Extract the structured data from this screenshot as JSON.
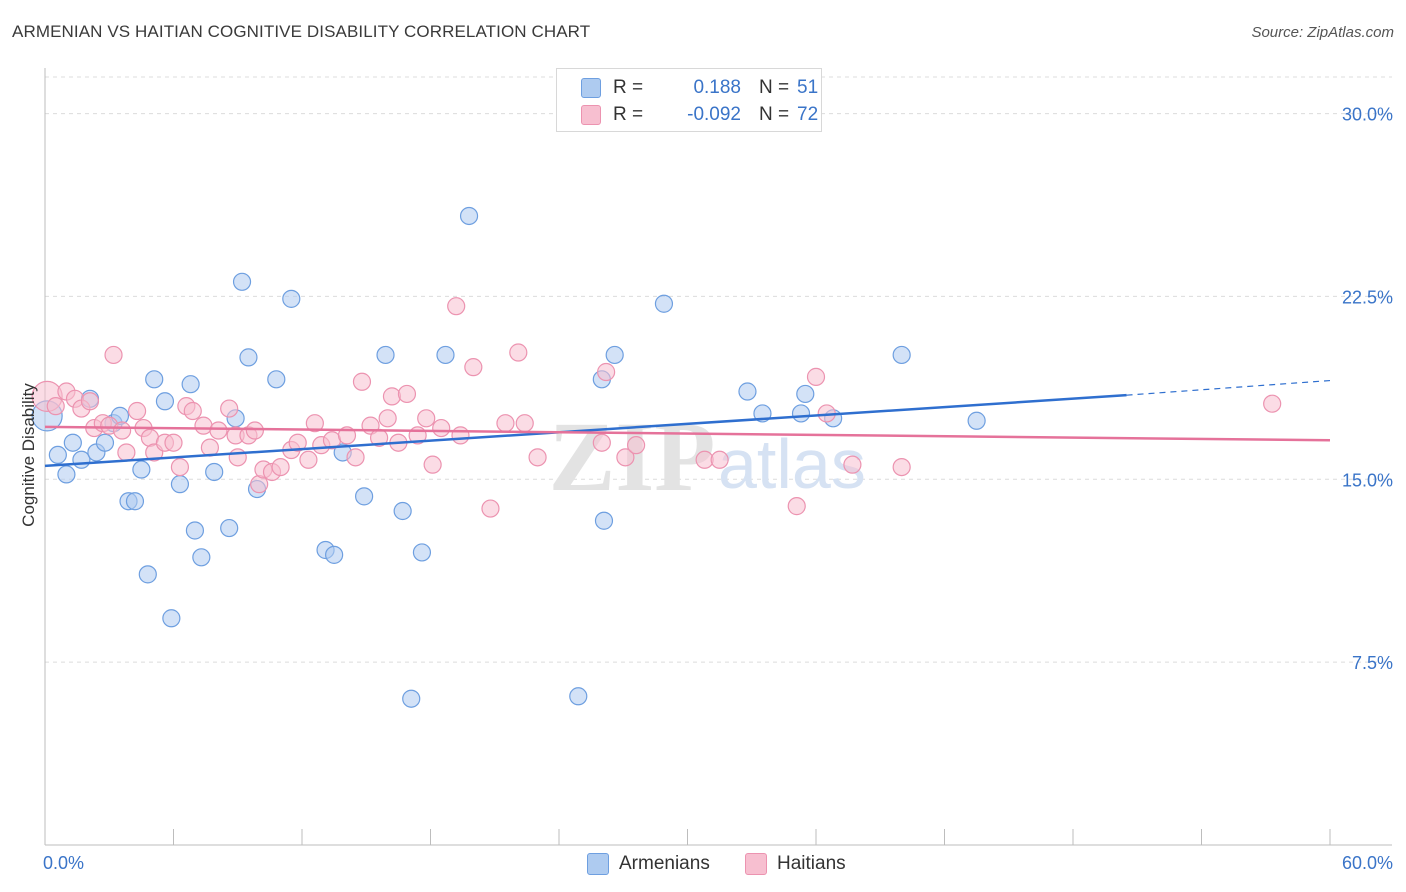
{
  "title": "ARMENIAN VS HAITIAN COGNITIVE DISABILITY CORRELATION CHART",
  "source": "Source: ZipAtlas.com",
  "watermark": {
    "zip": "ZIP",
    "atlas": "atlas"
  },
  "colors": {
    "armenians_fill": "#aecbf0",
    "armenians_stroke": "#6e9fe0",
    "armenians_line": "#2f6fcf",
    "haitians_fill": "#f7bfd0",
    "haitians_stroke": "#ec93b0",
    "haitians_line": "#e5729a",
    "tick_label": "#3a74c8",
    "grid": "#dcdcdc"
  },
  "legend": {
    "rows": [
      {
        "r_label": "R =",
        "r_value": "0.188",
        "n_label": "N =",
        "n_value": "51"
      },
      {
        "r_label": "R =",
        "r_value": "-0.092",
        "n_label": "N =",
        "n_value": "72"
      }
    ]
  },
  "chart_data": {
    "type": "scatter",
    "title": "ARMENIAN VS HAITIAN COGNITIVE DISABILITY CORRELATION CHART",
    "xlabel": "",
    "ylabel": "Cognitive Disability",
    "xlim": [
      0,
      60
    ],
    "ylim": [
      0,
      31.5
    ],
    "x_tick_labels": [
      "0.0%",
      "60.0%"
    ],
    "y_ticks": [
      7.5,
      15.0,
      22.5,
      30.0
    ],
    "y_tick_labels": [
      "7.5%",
      "15.0%",
      "22.5%",
      "30.0%"
    ],
    "grid": "horizontal dashed",
    "legend_position": "top-center",
    "series": [
      {
        "name": "Armenians",
        "trend": {
          "x": [
            0,
            50.5
          ],
          "y": [
            15.55,
            18.45
          ],
          "dashed_extension": {
            "x": [
              50.5,
              60
            ],
            "y": [
              18.45,
              19.05
            ]
          }
        },
        "points": [
          [
            0.1,
            17.6
          ],
          [
            0.6,
            16.0
          ],
          [
            1.0,
            15.2
          ],
          [
            1.3,
            16.5
          ],
          [
            1.7,
            15.8
          ],
          [
            2.1,
            18.3
          ],
          [
            2.4,
            16.1
          ],
          [
            2.8,
            16.5
          ],
          [
            3.2,
            17.3
          ],
          [
            3.5,
            17.6
          ],
          [
            3.9,
            14.1
          ],
          [
            4.2,
            14.1
          ],
          [
            4.5,
            15.4
          ],
          [
            4.8,
            11.1
          ],
          [
            5.1,
            19.1
          ],
          [
            5.6,
            18.2
          ],
          [
            5.9,
            9.3
          ],
          [
            6.3,
            14.8
          ],
          [
            6.8,
            18.9
          ],
          [
            7.0,
            12.9
          ],
          [
            7.3,
            11.8
          ],
          [
            7.9,
            15.3
          ],
          [
            8.6,
            13.0
          ],
          [
            8.9,
            17.5
          ],
          [
            9.2,
            23.1
          ],
          [
            9.5,
            20.0
          ],
          [
            9.9,
            14.6
          ],
          [
            10.8,
            19.1
          ],
          [
            11.5,
            22.4
          ],
          [
            13.1,
            12.1
          ],
          [
            13.5,
            11.9
          ],
          [
            13.9,
            16.1
          ],
          [
            14.9,
            14.3
          ],
          [
            15.9,
            20.1
          ],
          [
            16.7,
            13.7
          ],
          [
            17.1,
            6.0
          ],
          [
            17.6,
            12.0
          ],
          [
            18.7,
            20.1
          ],
          [
            19.8,
            25.8
          ],
          [
            24.9,
            6.1
          ],
          [
            26.0,
            19.1
          ],
          [
            26.1,
            13.3
          ],
          [
            26.6,
            20.1
          ],
          [
            28.9,
            22.2
          ],
          [
            32.8,
            18.6
          ],
          [
            33.5,
            17.7
          ],
          [
            35.3,
            17.7
          ],
          [
            35.5,
            18.5
          ],
          [
            36.8,
            17.5
          ],
          [
            40.0,
            20.1
          ],
          [
            43.5,
            17.4
          ]
        ]
      },
      {
        "name": "Haitians",
        "trend": {
          "x": [
            0,
            60
          ],
          "y": [
            17.15,
            16.6
          ]
        },
        "points": [
          [
            0.1,
            18.4
          ],
          [
            0.5,
            18.0
          ],
          [
            1.0,
            18.6
          ],
          [
            1.4,
            18.3
          ],
          [
            1.7,
            17.9
          ],
          [
            2.1,
            18.2
          ],
          [
            2.3,
            17.1
          ],
          [
            2.7,
            17.3
          ],
          [
            3.0,
            17.2
          ],
          [
            3.2,
            20.1
          ],
          [
            3.6,
            17.0
          ],
          [
            3.8,
            16.1
          ],
          [
            4.3,
            17.8
          ],
          [
            4.6,
            17.1
          ],
          [
            4.9,
            16.7
          ],
          [
            5.1,
            16.1
          ],
          [
            5.6,
            16.5
          ],
          [
            6.0,
            16.5
          ],
          [
            6.3,
            15.5
          ],
          [
            6.6,
            18.0
          ],
          [
            6.9,
            17.8
          ],
          [
            7.4,
            17.2
          ],
          [
            7.7,
            16.3
          ],
          [
            8.1,
            17.0
          ],
          [
            8.6,
            17.9
          ],
          [
            8.9,
            16.8
          ],
          [
            9.0,
            15.9
          ],
          [
            9.5,
            16.8
          ],
          [
            9.8,
            17.0
          ],
          [
            10.0,
            14.8
          ],
          [
            10.2,
            15.4
          ],
          [
            10.6,
            15.3
          ],
          [
            11.0,
            15.5
          ],
          [
            11.5,
            16.2
          ],
          [
            11.8,
            16.5
          ],
          [
            12.3,
            15.8
          ],
          [
            12.6,
            17.3
          ],
          [
            12.9,
            16.4
          ],
          [
            13.4,
            16.6
          ],
          [
            14.1,
            16.8
          ],
          [
            14.5,
            15.9
          ],
          [
            14.8,
            19.0
          ],
          [
            15.2,
            17.2
          ],
          [
            15.6,
            16.7
          ],
          [
            16.0,
            17.5
          ],
          [
            16.2,
            18.4
          ],
          [
            16.5,
            16.5
          ],
          [
            16.9,
            18.5
          ],
          [
            17.4,
            16.8
          ],
          [
            17.8,
            17.5
          ],
          [
            18.1,
            15.6
          ],
          [
            18.5,
            17.1
          ],
          [
            19.2,
            22.1
          ],
          [
            19.4,
            16.8
          ],
          [
            20.0,
            19.6
          ],
          [
            20.8,
            13.8
          ],
          [
            21.5,
            17.3
          ],
          [
            22.1,
            20.2
          ],
          [
            22.4,
            17.3
          ],
          [
            23.0,
            15.9
          ],
          [
            26.0,
            16.5
          ],
          [
            26.2,
            19.4
          ],
          [
            27.1,
            15.9
          ],
          [
            27.6,
            16.4
          ],
          [
            30.8,
            15.8
          ],
          [
            31.5,
            15.8
          ],
          [
            35.1,
            13.9
          ],
          [
            36.0,
            19.2
          ],
          [
            36.5,
            17.7
          ],
          [
            37.7,
            15.6
          ],
          [
            40.0,
            15.5
          ],
          [
            57.3,
            18.1
          ]
        ]
      }
    ]
  },
  "bottom_legend": [
    {
      "label": "Armenians"
    },
    {
      "label": "Haitians"
    }
  ]
}
